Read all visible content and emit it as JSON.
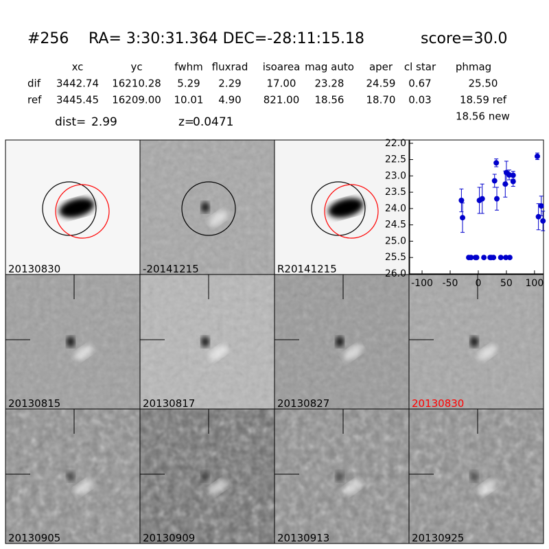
{
  "header": {
    "id": "#256",
    "coords": "RA= 3:30:31.364 DEC=-28:11:15.18",
    "score": "score=30.0"
  },
  "table": {
    "columns": [
      "xc",
      "yc",
      "fwhm",
      "fluxrad",
      "isoarea",
      "mag auto",
      "aper",
      "cl star",
      "phmag"
    ],
    "rows": [
      {
        "name": "dif",
        "cells": [
          "3442.74",
          "16210.28",
          "5.29",
          "2.29",
          "17.00",
          "23.28",
          "24.59",
          "0.67",
          "25.50"
        ]
      },
      {
        "name": "ref",
        "cells": [
          "3445.45",
          "16209.00",
          "10.01",
          "4.90",
          "821.00",
          "18.56",
          "18.70",
          "0.03",
          "18.59 ref"
        ]
      }
    ],
    "extra": "18.56 new"
  },
  "dist": {
    "label": "dist=",
    "value": "2.99"
  },
  "z": {
    "label": "z=",
    "value": "0.0471"
  },
  "panels": [
    {
      "label": "20130830"
    },
    {
      "label": "-20141215"
    },
    {
      "label": "R20141215"
    },
    {
      "label": "20130815"
    },
    {
      "label": "20130817"
    },
    {
      "label": "20130827"
    },
    {
      "label": "20130830",
      "color": "#ff0000"
    },
    {
      "label": "20130905"
    },
    {
      "label": "20130909"
    },
    {
      "label": "20130913"
    },
    {
      "label": "20130925"
    }
  ],
  "chart_data": {
    "type": "scatter",
    "color": "#0000cc",
    "x": [
      -30,
      -28,
      -17,
      -13,
      -5,
      -3,
      2,
      7,
      10,
      21,
      23,
      27,
      29,
      32,
      33,
      40,
      48,
      49,
      50,
      55,
      56,
      62,
      62,
      105,
      107,
      112,
      115
    ],
    "values": [
      23.75,
      24.28,
      25.5,
      25.5,
      25.5,
      25.5,
      23.75,
      23.7,
      25.5,
      25.5,
      25.5,
      25.5,
      23.15,
      22.6,
      23.7,
      25.5,
      23.25,
      25.5,
      22.9,
      22.97,
      25.5,
      22.98,
      23.17,
      22.4,
      24.25,
      23.92,
      24.38
    ],
    "errors": [
      0.35,
      0.45,
      0,
      0,
      0,
      0,
      0.4,
      0.45,
      0,
      0,
      0,
      0,
      0.2,
      0.12,
      0.35,
      0,
      0.4,
      0,
      0.35,
      0.15,
      0,
      0.12,
      0.15,
      0.1,
      0.4,
      0.3,
      0.3
    ],
    "xlim": [
      -122,
      116
    ],
    "ylim": [
      26,
      21.9
    ],
    "xticks": [
      -100,
      -50,
      0,
      50,
      100
    ],
    "yticks": [
      {
        "value": 22,
        "label": "22.0"
      },
      {
        "value": 22.5,
        "label": "22.5"
      },
      {
        "value": 23,
        "label": "23.0"
      },
      {
        "value": 23.5,
        "label": "23.5"
      },
      {
        "value": 24,
        "label": "24.0"
      },
      {
        "value": 24.5,
        "label": "24.5"
      },
      {
        "value": 25,
        "label": "25.0"
      },
      {
        "value": 25.5,
        "label": "25.5"
      },
      {
        "value": 26,
        "label": "26.0"
      }
    ]
  }
}
